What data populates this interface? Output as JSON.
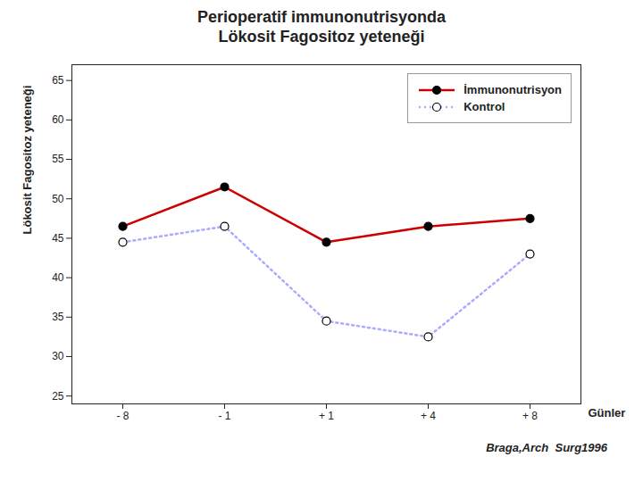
{
  "chart_data": {
    "type": "line",
    "title": "Perioperatif immunonutrisyonda",
    "subtitle": "Lökosit Fagositoz yeteneği",
    "xlabel": "Günler",
    "ylabel": "Lökosit Fagositoz yeteneği",
    "categories": [
      "- 8",
      "- 1",
      "+ 1",
      "+ 4",
      "+ 8"
    ],
    "series": [
      {
        "name": "İmmunonutrisyon",
        "color": "#cc0000",
        "marker": "circle",
        "line_style": "solid",
        "values": [
          46.5,
          51.5,
          44.5,
          46.5,
          47.5
        ]
      },
      {
        "name": "Kontrol",
        "color": "#aaaaff",
        "marker": "ring",
        "line_style": "dotted",
        "values": [
          44.5,
          46.5,
          34.5,
          32.5,
          43.0
        ]
      }
    ],
    "ylim": [
      24,
      67
    ],
    "yticks": [
      25,
      30,
      35,
      40,
      45,
      50,
      55,
      60,
      65
    ],
    "grid": false,
    "legend": "upper right",
    "annotations": [
      "Braga,Arch  Surg1996"
    ]
  }
}
